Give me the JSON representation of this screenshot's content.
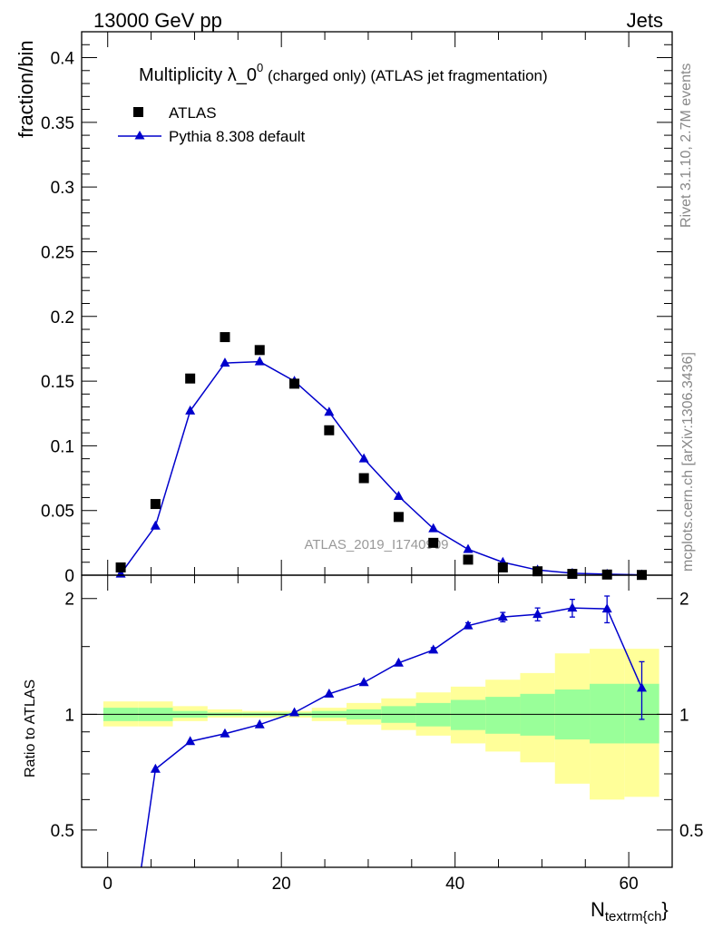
{
  "header": {
    "left": "13000 GeV pp",
    "right": "Jets"
  },
  "side_labels": {
    "rivet": "Rivet 3.1.10,  2.7M events",
    "mcplots": "mcplots.cern.ch [arXiv:1306.3436]"
  },
  "chart_data": [
    {
      "type": "scatter",
      "title": {
        "main": "Multiplicity λ_0",
        "sup": "0",
        "suffix": " (charged only) (ATLAS jet fragmentation)"
      },
      "ylabel": "fraction/bin",
      "watermark": "ATLAS_2019_I1740909",
      "xlim": [
        -3,
        65
      ],
      "ylim": [
        0,
        0.42
      ],
      "yticks": [
        0,
        0.05,
        0.1,
        0.15,
        0.2,
        0.25,
        0.3,
        0.35,
        0.4
      ],
      "ytick_labels": [
        "0",
        "0.05",
        "0.1",
        "0.15",
        "0.2",
        "0.25",
        "0.3",
        "0.35",
        "0.4"
      ],
      "legend": {
        "position": "top-left",
        "data_label": "ATLAS",
        "mc_label": "Pythia 8.308 default"
      },
      "colors": {
        "data": "#000000",
        "mc": "#0000cc"
      },
      "series": [
        {
          "name": "ATLAS",
          "marker": "square",
          "x": [
            1.5,
            5.5,
            9.5,
            13.5,
            17.5,
            21.5,
            25.5,
            29.5,
            33.5,
            37.5,
            41.5,
            45.5,
            49.5,
            53.5,
            57.5,
            61.5
          ],
          "y": [
            0.006,
            0.055,
            0.152,
            0.184,
            0.174,
            0.148,
            0.112,
            0.075,
            0.045,
            0.025,
            0.012,
            0.006,
            0.003,
            0.001,
            0.0005,
            0.0002
          ]
        },
        {
          "name": "Pythia 8.308 default",
          "marker": "triangle",
          "x": [
            1.5,
            5.5,
            9.5,
            13.5,
            17.5,
            21.5,
            25.5,
            29.5,
            33.5,
            37.5,
            41.5,
            45.5,
            49.5,
            53.5,
            57.5,
            61.5
          ],
          "y": [
            0.001,
            0.038,
            0.127,
            0.164,
            0.165,
            0.15,
            0.126,
            0.09,
            0.061,
            0.036,
            0.02,
            0.01,
            0.004,
            0.0015,
            0.0008,
            0.0003
          ]
        }
      ]
    },
    {
      "type": "line",
      "ylabel": "Ratio to ATLAS",
      "xlabel_main": "N",
      "xlabel_sub": "textrm{ch",
      "xlabel_end": "}",
      "xlim": [
        -3,
        65
      ],
      "ylim": [
        0.4,
        2.3
      ],
      "xticks": [
        0,
        20,
        40,
        60
      ],
      "xtick_labels": [
        "0",
        "20",
        "40",
        "60"
      ],
      "yticks": [
        0.5,
        1,
        2
      ],
      "ytick_labels": [
        "0.5",
        "1",
        "2"
      ],
      "bands": {
        "edges": [
          -0.5,
          3.5,
          7.5,
          11.5,
          15.5,
          19.5,
          23.5,
          27.5,
          31.5,
          35.5,
          39.5,
          43.5,
          47.5,
          51.5,
          55.5,
          59.5,
          63.5
        ],
        "green_lo": [
          0.96,
          0.96,
          0.98,
          0.99,
          0.99,
          0.99,
          0.98,
          0.97,
          0.95,
          0.93,
          0.91,
          0.89,
          0.88,
          0.86,
          0.84,
          0.84
        ],
        "green_hi": [
          1.04,
          1.04,
          1.02,
          1.01,
          1.01,
          1.01,
          1.02,
          1.03,
          1.05,
          1.07,
          1.09,
          1.11,
          1.13,
          1.16,
          1.2,
          1.2
        ],
        "yellow_lo": [
          0.93,
          0.93,
          0.96,
          0.98,
          0.98,
          0.98,
          0.96,
          0.94,
          0.91,
          0.88,
          0.84,
          0.8,
          0.75,
          0.66,
          0.6,
          0.61
        ],
        "yellow_hi": [
          1.08,
          1.08,
          1.05,
          1.03,
          1.02,
          1.02,
          1.04,
          1.07,
          1.1,
          1.14,
          1.18,
          1.23,
          1.28,
          1.44,
          1.48,
          1.48
        ],
        "colors": {
          "green": "#99ff99",
          "yellow": "#ffff99"
        }
      },
      "series": [
        {
          "name": "Pythia 8.308 default",
          "x": [
            1.5,
            5.5,
            9.5,
            13.5,
            17.5,
            21.5,
            25.5,
            29.5,
            33.5,
            37.5,
            41.5,
            45.5,
            49.5,
            53.5,
            57.5,
            61.5
          ],
          "y": [
            0.17,
            0.72,
            0.85,
            0.89,
            0.94,
            1.01,
            1.13,
            1.21,
            1.36,
            1.47,
            1.7,
            1.79,
            1.82,
            1.89,
            1.88,
            1.17
          ],
          "yerr": [
            0,
            0,
            0,
            0,
            0,
            0,
            0,
            0,
            0,
            0.02,
            0.03,
            0.05,
            0.07,
            0.1,
            0.15,
            0.2
          ]
        }
      ]
    }
  ]
}
